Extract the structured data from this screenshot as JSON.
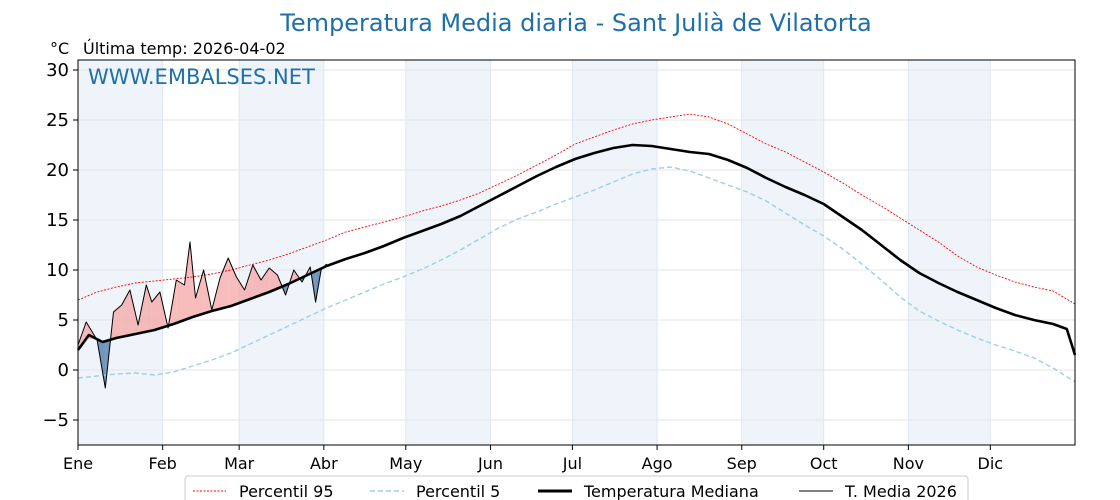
{
  "chart_data": {
    "type": "line",
    "title": "Temperatura Media diaria - Sant Julià de Vilatorta",
    "unit_label": "°C",
    "last_temp_label": "Última temp: 2026-04-02",
    "watermark": "WWW.EMBALSES.NET",
    "ylim": [
      -7.5,
      31
    ],
    "yticks": [
      -5,
      0,
      5,
      10,
      15,
      20,
      25,
      30
    ],
    "ytick_labels": [
      "−5",
      "0",
      "5",
      "10",
      "15",
      "20",
      "25",
      "30"
    ],
    "xlim": [
      1,
      366
    ],
    "month_starts": [
      1,
      32,
      60,
      91,
      121,
      152,
      182,
      213,
      244,
      274,
      305,
      335
    ],
    "month_labels": [
      "Ene",
      "Feb",
      "Mar",
      "Abr",
      "May",
      "Jun",
      "Jul",
      "Ago",
      "Sep",
      "Oct",
      "Nov",
      "Dic"
    ],
    "grid": true,
    "legend_position": "bottom",
    "colors": {
      "p95": "#ff0000",
      "p5": "#9ecfe3",
      "median": "#000000",
      "current": "#000000",
      "above_fill": "#f4a6a6",
      "below_fill": "#5a86b1",
      "title": "#1f6fa9",
      "shade": "#eef4fa"
    },
    "series": [
      {
        "name": "Percentil 95",
        "key": "p95",
        "x": [
          1,
          8,
          15,
          22,
          29,
          36,
          43,
          50,
          57,
          64,
          71,
          78,
          85,
          92,
          99,
          106,
          113,
          120,
          127,
          134,
          141,
          148,
          155,
          162,
          169,
          176,
          183,
          190,
          197,
          204,
          211,
          218,
          225,
          232,
          239,
          246,
          253,
          260,
          267,
          274,
          281,
          288,
          295,
          302,
          309,
          316,
          323,
          330,
          337,
          344,
          351,
          358,
          366
        ],
        "values": [
          7.0,
          7.8,
          8.3,
          8.7,
          8.9,
          9.1,
          9.3,
          9.6,
          10.0,
          10.5,
          11.0,
          11.6,
          12.3,
          13.0,
          13.8,
          14.3,
          14.8,
          15.3,
          15.9,
          16.4,
          17.0,
          17.7,
          18.6,
          19.5,
          20.5,
          21.5,
          22.6,
          23.3,
          24.0,
          24.6,
          25.0,
          25.3,
          25.6,
          25.3,
          24.6,
          23.6,
          22.6,
          21.8,
          20.8,
          19.8,
          18.7,
          17.5,
          16.4,
          15.2,
          14.0,
          12.8,
          11.4,
          10.3,
          9.5,
          8.8,
          8.3,
          7.9,
          6.6
        ]
      },
      {
        "name": "Percentil 5",
        "key": "p5",
        "x": [
          1,
          8,
          15,
          22,
          29,
          36,
          43,
          50,
          57,
          64,
          71,
          78,
          85,
          92,
          99,
          106,
          113,
          120,
          127,
          134,
          141,
          148,
          155,
          162,
          169,
          176,
          183,
          190,
          197,
          204,
          211,
          218,
          225,
          232,
          239,
          246,
          253,
          260,
          267,
          274,
          281,
          288,
          295,
          302,
          309,
          316,
          323,
          330,
          337,
          344,
          351,
          358,
          366
        ],
        "values": [
          -0.8,
          -0.6,
          -0.4,
          -0.3,
          -0.5,
          -0.2,
          0.4,
          1.0,
          1.7,
          2.6,
          3.5,
          4.4,
          5.3,
          6.2,
          7.0,
          7.8,
          8.6,
          9.3,
          10.1,
          11.0,
          12.0,
          13.1,
          14.2,
          15.1,
          15.8,
          16.6,
          17.3,
          18.0,
          18.8,
          19.6,
          20.1,
          20.3,
          19.9,
          19.2,
          18.5,
          17.8,
          16.9,
          15.7,
          14.5,
          13.4,
          12.1,
          10.6,
          9.0,
          7.3,
          5.9,
          4.9,
          4.0,
          3.2,
          2.5,
          1.9,
          1.2,
          0.2,
          -1.2
        ]
      },
      {
        "name": "Temperatura Mediana",
        "key": "median",
        "x": [
          1,
          5,
          10,
          15,
          22,
          29,
          36,
          43,
          50,
          57,
          64,
          71,
          78,
          85,
          92,
          99,
          106,
          113,
          120,
          127,
          134,
          141,
          148,
          155,
          162,
          169,
          176,
          183,
          190,
          197,
          204,
          211,
          218,
          225,
          232,
          239,
          246,
          253,
          260,
          267,
          274,
          281,
          288,
          295,
          302,
          309,
          316,
          323,
          330,
          337,
          344,
          351,
          358,
          363,
          366
        ],
        "values": [
          2.0,
          3.5,
          2.8,
          3.2,
          3.6,
          4.0,
          4.6,
          5.3,
          5.9,
          6.4,
          7.1,
          7.8,
          8.6,
          9.5,
          10.4,
          11.1,
          11.7,
          12.4,
          13.2,
          13.9,
          14.6,
          15.4,
          16.4,
          17.4,
          18.4,
          19.4,
          20.3,
          21.1,
          21.7,
          22.2,
          22.5,
          22.4,
          22.1,
          21.8,
          21.6,
          21.0,
          20.2,
          19.2,
          18.3,
          17.5,
          16.6,
          15.3,
          14.0,
          12.5,
          11.0,
          9.7,
          8.7,
          7.8,
          7.0,
          6.2,
          5.5,
          5.0,
          4.6,
          4.1,
          1.5
        ]
      },
      {
        "name": "T. Media 2026",
        "key": "current",
        "x": [
          1,
          4,
          8,
          11,
          14,
          17,
          20,
          23,
          26,
          28,
          31,
          34,
          37,
          40,
          42,
          44,
          47,
          50,
          53,
          56,
          59,
          62,
          65,
          68,
          71,
          74,
          77,
          80,
          83,
          86,
          88,
          90,
          92
        ],
        "values": [
          2.5,
          4.8,
          3.0,
          -1.8,
          5.8,
          6.5,
          8.0,
          4.5,
          8.5,
          6.8,
          7.8,
          4.2,
          9.0,
          8.5,
          12.8,
          7.2,
          10.0,
          6.0,
          9.2,
          11.2,
          9.3,
          8.0,
          10.5,
          9.0,
          10.2,
          9.5,
          7.5,
          10.0,
          8.8,
          10.3,
          6.8,
          10.0,
          10.6
        ]
      }
    ]
  }
}
